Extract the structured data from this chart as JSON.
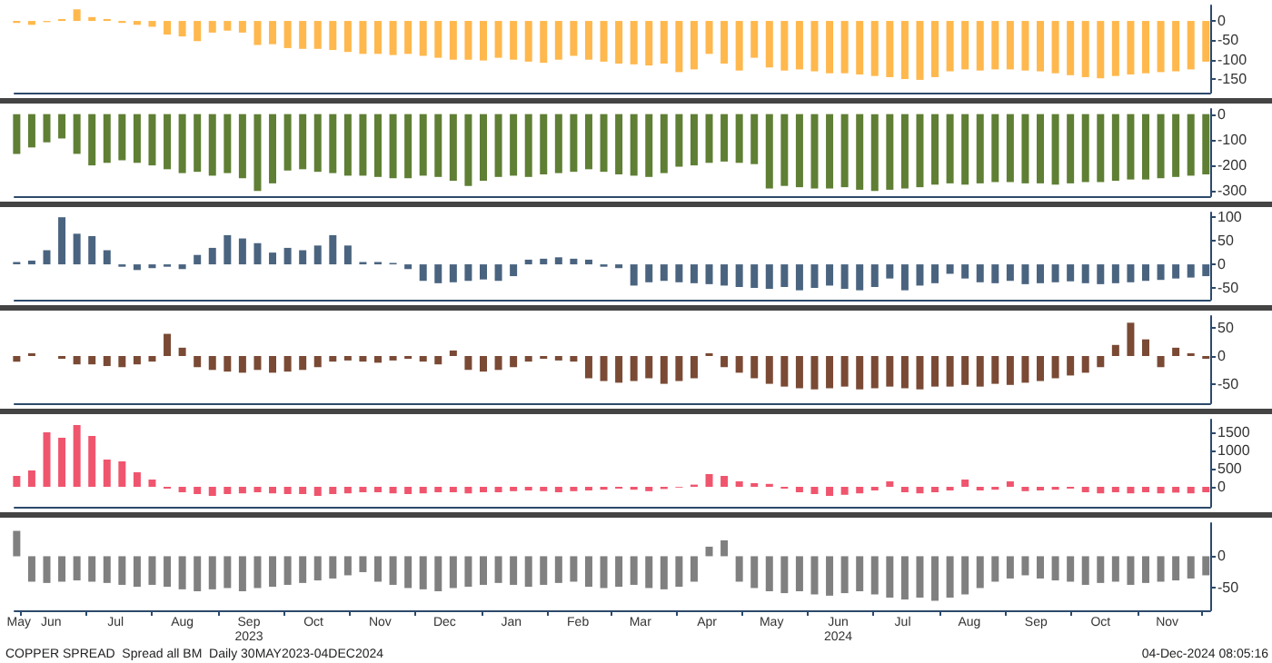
{
  "chart_data": [
    {
      "type": "bar",
      "color": "#ffb84d",
      "tick_labels": "y",
      "xlim": [
        "2023-05-29",
        "2024-12-05"
      ],
      "ylim": [
        -185,
        40
      ],
      "yticks": [
        -150,
        -100,
        -50,
        0
      ],
      "x": [
        "2023-05-30",
        "2023-06-06",
        "2023-06-13",
        "2023-06-20",
        "2023-06-27",
        "2023-07-04",
        "2023-07-11",
        "2023-07-18",
        "2023-07-25",
        "2023-08-01",
        "2023-08-08",
        "2023-08-15",
        "2023-08-22",
        "2023-08-29",
        "2023-09-05",
        "2023-09-12",
        "2023-09-19",
        "2023-09-26",
        "2023-10-03",
        "2023-10-10",
        "2023-10-17",
        "2023-10-24",
        "2023-10-31",
        "2023-11-07",
        "2023-11-14",
        "2023-11-21",
        "2023-11-28",
        "2023-12-05",
        "2023-12-12",
        "2023-12-19",
        "2023-12-26",
        "2024-01-02",
        "2024-01-09",
        "2024-01-16",
        "2024-01-23",
        "2024-01-30",
        "2024-02-06",
        "2024-02-13",
        "2024-02-20",
        "2024-02-27",
        "2024-03-05",
        "2024-03-12",
        "2024-03-19",
        "2024-03-26",
        "2024-04-02",
        "2024-04-09",
        "2024-04-16",
        "2024-04-23",
        "2024-04-30",
        "2024-05-07",
        "2024-05-14",
        "2024-05-21",
        "2024-05-28",
        "2024-06-04",
        "2024-06-11",
        "2024-06-18",
        "2024-06-25",
        "2024-07-02",
        "2024-07-09",
        "2024-07-16",
        "2024-07-23",
        "2024-07-30",
        "2024-08-06",
        "2024-08-13",
        "2024-08-20",
        "2024-08-27",
        "2024-09-03",
        "2024-09-10",
        "2024-09-17",
        "2024-09-24",
        "2024-10-01",
        "2024-10-08",
        "2024-10-15",
        "2024-10-22",
        "2024-10-29",
        "2024-11-05",
        "2024-11-12",
        "2024-11-19",
        "2024-11-26",
        "2024-12-03"
      ],
      "values": [
        -5,
        -10,
        -3,
        5,
        30,
        10,
        5,
        -5,
        -10,
        -15,
        -35,
        -40,
        -52,
        -30,
        -25,
        -30,
        -62,
        -60,
        -70,
        -72,
        -72,
        -75,
        -80,
        -85,
        -85,
        -88,
        -85,
        -90,
        -95,
        -100,
        -100,
        -102,
        -95,
        -100,
        -105,
        -108,
        -100,
        -90,
        -100,
        -105,
        -110,
        -112,
        -115,
        -110,
        -132,
        -125,
        -85,
        -110,
        -128,
        -95,
        -120,
        -128,
        -125,
        -130,
        -135,
        -135,
        -138,
        -142,
        -145,
        -150,
        -152,
        -145,
        -130,
        -125,
        -128,
        -125,
        -125,
        -128,
        -130,
        -135,
        -140,
        -145,
        -148,
        -142,
        -138,
        -135,
        -132,
        -130,
        -125,
        -105
      ]
    },
    {
      "type": "bar",
      "color": "#5f7f34",
      "tick_labels": "y",
      "xlim": [
        "2023-05-29",
        "2024-12-05"
      ],
      "ylim": [
        -320,
        20
      ],
      "yticks": [
        -300,
        -200,
        -100,
        0
      ],
      "x": [
        "2023-05-30",
        "2023-06-06",
        "2023-06-13",
        "2023-06-20",
        "2023-06-27",
        "2023-07-04",
        "2023-07-11",
        "2023-07-18",
        "2023-07-25",
        "2023-08-01",
        "2023-08-08",
        "2023-08-15",
        "2023-08-22",
        "2023-08-29",
        "2023-09-05",
        "2023-09-12",
        "2023-09-19",
        "2023-09-26",
        "2023-10-03",
        "2023-10-10",
        "2023-10-17",
        "2023-10-24",
        "2023-10-31",
        "2023-11-07",
        "2023-11-14",
        "2023-11-21",
        "2023-11-28",
        "2023-12-05",
        "2023-12-12",
        "2023-12-19",
        "2023-12-26",
        "2024-01-02",
        "2024-01-09",
        "2024-01-16",
        "2024-01-23",
        "2024-01-30",
        "2024-02-06",
        "2024-02-13",
        "2024-02-20",
        "2024-02-27",
        "2024-03-05",
        "2024-03-12",
        "2024-03-19",
        "2024-03-26",
        "2024-04-02",
        "2024-04-09",
        "2024-04-16",
        "2024-04-23",
        "2024-04-30",
        "2024-05-07",
        "2024-05-14",
        "2024-05-21",
        "2024-05-28",
        "2024-06-04",
        "2024-06-11",
        "2024-06-18",
        "2024-06-25",
        "2024-07-02",
        "2024-07-09",
        "2024-07-16",
        "2024-07-23",
        "2024-07-30",
        "2024-08-06",
        "2024-08-13",
        "2024-08-20",
        "2024-08-27",
        "2024-09-03",
        "2024-09-10",
        "2024-09-17",
        "2024-09-24",
        "2024-10-01",
        "2024-10-08",
        "2024-10-15",
        "2024-10-22",
        "2024-10-29",
        "2024-11-05",
        "2024-11-12",
        "2024-11-19",
        "2024-11-26",
        "2024-12-03"
      ],
      "values": [
        -155,
        -130,
        -110,
        -95,
        -155,
        -200,
        -190,
        -180,
        -190,
        -200,
        -215,
        -230,
        -225,
        -240,
        -230,
        -250,
        -300,
        -270,
        -220,
        -215,
        -225,
        -230,
        -240,
        -240,
        -245,
        -250,
        -250,
        -240,
        -245,
        -260,
        -280,
        -260,
        -245,
        -240,
        -245,
        -235,
        -230,
        -225,
        -215,
        -225,
        -235,
        -240,
        -245,
        -230,
        -205,
        -200,
        -190,
        -185,
        -190,
        -195,
        -290,
        -280,
        -285,
        -290,
        -290,
        -285,
        -295,
        -300,
        -295,
        -290,
        -285,
        -275,
        -270,
        -275,
        -270,
        -265,
        -265,
        -270,
        -270,
        -275,
        -270,
        -265,
        -265,
        -260,
        -255,
        -255,
        -250,
        -245,
        -240,
        -235
      ]
    },
    {
      "type": "bar",
      "color": "#4a6480",
      "tick_labels": "y",
      "xlim": [
        "2023-05-29",
        "2024-12-05"
      ],
      "ylim": [
        -75,
        110
      ],
      "yticks": [
        -50,
        0,
        50,
        100
      ],
      "x": [
        "2023-05-30",
        "2023-06-06",
        "2023-06-13",
        "2023-06-20",
        "2023-06-27",
        "2023-07-04",
        "2023-07-11",
        "2023-07-18",
        "2023-07-25",
        "2023-08-01",
        "2023-08-08",
        "2023-08-15",
        "2023-08-22",
        "2023-08-29",
        "2023-09-05",
        "2023-09-12",
        "2023-09-19",
        "2023-09-26",
        "2023-10-03",
        "2023-10-10",
        "2023-10-17",
        "2023-10-24",
        "2023-10-31",
        "2023-11-07",
        "2023-11-14",
        "2023-11-21",
        "2023-11-28",
        "2023-12-05",
        "2023-12-12",
        "2023-12-19",
        "2023-12-26",
        "2024-01-02",
        "2024-01-09",
        "2024-01-16",
        "2024-01-23",
        "2024-01-30",
        "2024-02-06",
        "2024-02-13",
        "2024-02-20",
        "2024-02-27",
        "2024-03-05",
        "2024-03-12",
        "2024-03-19",
        "2024-03-26",
        "2024-04-02",
        "2024-04-09",
        "2024-04-16",
        "2024-04-23",
        "2024-04-30",
        "2024-05-07",
        "2024-05-14",
        "2024-05-21",
        "2024-05-28",
        "2024-06-04",
        "2024-06-11",
        "2024-06-18",
        "2024-06-25",
        "2024-07-02",
        "2024-07-09",
        "2024-07-16",
        "2024-07-23",
        "2024-07-30",
        "2024-08-06",
        "2024-08-13",
        "2024-08-20",
        "2024-08-27",
        "2024-09-03",
        "2024-09-10",
        "2024-09-17",
        "2024-09-24",
        "2024-10-01",
        "2024-10-08",
        "2024-10-15",
        "2024-10-22",
        "2024-10-29",
        "2024-11-05",
        "2024-11-12",
        "2024-11-19",
        "2024-11-26",
        "2024-12-03"
      ],
      "values": [
        5,
        8,
        30,
        100,
        65,
        60,
        30,
        -5,
        -12,
        -8,
        -5,
        -10,
        20,
        35,
        62,
        55,
        45,
        25,
        35,
        30,
        40,
        62,
        40,
        5,
        5,
        3,
        -10,
        -35,
        -40,
        -38,
        -35,
        -32,
        -35,
        -25,
        10,
        12,
        15,
        12,
        10,
        -5,
        -8,
        -45,
        -38,
        -35,
        -38,
        -40,
        -42,
        -45,
        -48,
        -50,
        -52,
        -48,
        -55,
        -50,
        -45,
        -52,
        -55,
        -48,
        -30,
        -55,
        -45,
        -40,
        -20,
        -30,
        -38,
        -40,
        -35,
        -42,
        -40,
        -38,
        -36,
        -40,
        -42,
        -40,
        -38,
        -35,
        -33,
        -30,
        -28,
        -25
      ]
    },
    {
      "type": "bar",
      "color": "#7a4a35",
      "tick_labels": "y",
      "xlim": [
        "2023-05-29",
        "2024-12-05"
      ],
      "ylim": [
        -85,
        72
      ],
      "yticks": [
        -50,
        0,
        50
      ],
      "x": [
        "2023-05-30",
        "2023-06-06",
        "2023-06-13",
        "2023-06-20",
        "2023-06-27",
        "2023-07-04",
        "2023-07-11",
        "2023-07-18",
        "2023-07-25",
        "2023-08-01",
        "2023-08-08",
        "2023-08-15",
        "2023-08-22",
        "2023-08-29",
        "2023-09-05",
        "2023-09-12",
        "2023-09-19",
        "2023-09-26",
        "2023-10-03",
        "2023-10-10",
        "2023-10-17",
        "2023-10-24",
        "2023-10-31",
        "2023-11-07",
        "2023-11-14",
        "2023-11-21",
        "2023-11-28",
        "2023-12-05",
        "2023-12-12",
        "2023-12-19",
        "2023-12-26",
        "2024-01-02",
        "2024-01-09",
        "2024-01-16",
        "2024-01-23",
        "2024-01-30",
        "2024-02-06",
        "2024-02-13",
        "2024-02-20",
        "2024-02-27",
        "2024-03-05",
        "2024-03-12",
        "2024-03-19",
        "2024-03-26",
        "2024-04-02",
        "2024-04-09",
        "2024-04-16",
        "2024-04-23",
        "2024-04-30",
        "2024-05-07",
        "2024-05-14",
        "2024-05-21",
        "2024-05-28",
        "2024-06-04",
        "2024-06-11",
        "2024-06-18",
        "2024-06-25",
        "2024-07-02",
        "2024-07-09",
        "2024-07-16",
        "2024-07-23",
        "2024-07-30",
        "2024-08-06",
        "2024-08-13",
        "2024-08-20",
        "2024-08-27",
        "2024-09-03",
        "2024-09-10",
        "2024-09-17",
        "2024-09-24",
        "2024-10-01",
        "2024-10-08",
        "2024-10-15",
        "2024-10-22",
        "2024-10-29",
        "2024-11-05",
        "2024-11-12",
        "2024-11-19",
        "2024-11-26",
        "2024-12-03"
      ],
      "values": [
        -10,
        5,
        0,
        -5,
        -15,
        -15,
        -18,
        -20,
        -15,
        -10,
        40,
        15,
        -20,
        -25,
        -28,
        -30,
        -25,
        -30,
        -28,
        -25,
        -20,
        -10,
        -8,
        -10,
        -12,
        -8,
        -5,
        -10,
        -15,
        10,
        -25,
        -28,
        -25,
        -20,
        -10,
        -5,
        -8,
        -10,
        -40,
        -45,
        -48,
        -45,
        -40,
        -50,
        -45,
        -40,
        5,
        -20,
        -30,
        -40,
        -50,
        -55,
        -58,
        -60,
        -58,
        -55,
        -60,
        -58,
        -55,
        -58,
        -60,
        -55,
        -55,
        -52,
        -55,
        -50,
        -52,
        -48,
        -45,
        -40,
        -35,
        -30,
        -20,
        20,
        60,
        30,
        -20,
        15,
        5,
        -5
      ]
    },
    {
      "type": "bar",
      "color": "#f0556e",
      "tick_labels": "y",
      "xlim": [
        "2023-05-29",
        "2024-12-05"
      ],
      "ylim": [
        -550,
        1850
      ],
      "yticks": [
        0,
        500,
        1000,
        1500
      ],
      "x": [
        "2023-05-30",
        "2023-06-06",
        "2023-06-13",
        "2023-06-20",
        "2023-06-27",
        "2023-07-04",
        "2023-07-11",
        "2023-07-18",
        "2023-07-25",
        "2023-08-01",
        "2023-08-08",
        "2023-08-15",
        "2023-08-22",
        "2023-08-29",
        "2023-09-05",
        "2023-09-12",
        "2023-09-19",
        "2023-09-26",
        "2023-10-03",
        "2023-10-10",
        "2023-10-17",
        "2023-10-24",
        "2023-10-31",
        "2023-11-07",
        "2023-11-14",
        "2023-11-21",
        "2023-11-28",
        "2023-12-05",
        "2023-12-12",
        "2023-12-19",
        "2023-12-26",
        "2024-01-02",
        "2024-01-09",
        "2024-01-16",
        "2024-01-23",
        "2024-01-30",
        "2024-02-06",
        "2024-02-13",
        "2024-02-20",
        "2024-02-27",
        "2024-03-05",
        "2024-03-12",
        "2024-03-19",
        "2024-03-26",
        "2024-04-02",
        "2024-04-09",
        "2024-04-16",
        "2024-04-23",
        "2024-04-30",
        "2024-05-07",
        "2024-05-14",
        "2024-05-21",
        "2024-05-28",
        "2024-06-04",
        "2024-06-11",
        "2024-06-18",
        "2024-06-25",
        "2024-07-02",
        "2024-07-09",
        "2024-07-16",
        "2024-07-23",
        "2024-07-30",
        "2024-08-06",
        "2024-08-13",
        "2024-08-20",
        "2024-08-27",
        "2024-09-03",
        "2024-09-10",
        "2024-09-17",
        "2024-09-24",
        "2024-10-01",
        "2024-10-08",
        "2024-10-15",
        "2024-10-22",
        "2024-10-29",
        "2024-11-05",
        "2024-11-12",
        "2024-11-19",
        "2024-11-26",
        "2024-12-03"
      ],
      "values": [
        300,
        450,
        1500,
        1350,
        1700,
        1400,
        750,
        700,
        400,
        200,
        -50,
        -150,
        -200,
        -250,
        -200,
        -180,
        -150,
        -180,
        -200,
        -200,
        -250,
        -200,
        -180,
        -150,
        -150,
        -180,
        -200,
        -180,
        -150,
        -150,
        -180,
        -150,
        -150,
        -120,
        -100,
        -120,
        -150,
        -120,
        -100,
        -80,
        -50,
        -80,
        -120,
        -60,
        -20,
        60,
        350,
        300,
        150,
        100,
        80,
        -50,
        -150,
        -200,
        -250,
        -220,
        -180,
        -100,
        150,
        -150,
        -180,
        -150,
        -100,
        200,
        -100,
        -80,
        150,
        -120,
        -100,
        -80,
        -50,
        -150,
        -180,
        -150,
        -180,
        -150,
        -180,
        -160,
        -180,
        -150
      ]
    },
    {
      "type": "bar",
      "color": "#808080",
      "xlim": [
        "2023-05-29",
        "2024-12-05"
      ],
      "ylim": [
        -85,
        52
      ],
      "yticks": [
        -50,
        0
      ],
      "xticks": [
        {
          "value": "2023-06-01",
          "label": null
        },
        {
          "value": "2023-07-01",
          "label": null
        },
        {
          "value": "2023-08-01",
          "label": null
        },
        {
          "value": "2023-09-01",
          "label": null
        },
        {
          "value": "2023-10-01",
          "label": null
        },
        {
          "value": "2023-11-01",
          "label": null
        },
        {
          "value": "2023-12-01",
          "label": null
        },
        {
          "value": "2024-01-01",
          "label": null
        },
        {
          "value": "2024-02-01",
          "label": null
        },
        {
          "value": "2024-03-01",
          "label": null
        },
        {
          "value": "2024-04-01",
          "label": null
        },
        {
          "value": "2024-05-01",
          "label": null
        },
        {
          "value": "2024-06-01",
          "label": null
        },
        {
          "value": "2024-07-01",
          "label": null
        },
        {
          "value": "2024-08-01",
          "label": null
        },
        {
          "value": "2024-09-01",
          "label": null
        },
        {
          "value": "2024-10-01",
          "label": null
        },
        {
          "value": "2024-11-01",
          "label": null
        },
        {
          "value": "2024-12-01",
          "label": null
        },
        {
          "value": "2023-05-31",
          "label": "May"
        },
        {
          "value": "2023-06-15",
          "label": "Jun"
        },
        {
          "value": "2023-07-15",
          "label": "Jul"
        },
        {
          "value": "2023-08-15",
          "label": "Aug"
        },
        {
          "value": "2023-09-15",
          "label": "Sep\n2023"
        },
        {
          "value": "2023-10-15",
          "label": "Oct"
        },
        {
          "value": "2023-11-15",
          "label": "Nov"
        },
        {
          "value": "2023-12-15",
          "label": "Dec"
        },
        {
          "value": "2024-01-15",
          "label": "Jan"
        },
        {
          "value": "2024-02-15",
          "label": "Feb"
        },
        {
          "value": "2024-03-15",
          "label": "Mar"
        },
        {
          "value": "2024-04-15",
          "label": "Apr"
        },
        {
          "value": "2024-05-15",
          "label": "May"
        },
        {
          "value": "2024-06-15",
          "label": "Jun\n2024"
        },
        {
          "value": "2024-07-15",
          "label": "Jul"
        },
        {
          "value": "2024-08-15",
          "label": "Aug"
        },
        {
          "value": "2024-09-15",
          "label": "Sep"
        },
        {
          "value": "2024-10-15",
          "label": "Oct"
        },
        {
          "value": "2024-11-15",
          "label": "Nov"
        }
      ],
      "x": [
        "2023-05-30",
        "2023-06-06",
        "2023-06-13",
        "2023-06-20",
        "2023-06-27",
        "2023-07-04",
        "2023-07-11",
        "2023-07-18",
        "2023-07-25",
        "2023-08-01",
        "2023-08-08",
        "2023-08-15",
        "2023-08-22",
        "2023-08-29",
        "2023-09-05",
        "2023-09-12",
        "2023-09-19",
        "2023-09-26",
        "2023-10-03",
        "2023-10-10",
        "2023-10-17",
        "2023-10-24",
        "2023-10-31",
        "2023-11-07",
        "2023-11-14",
        "2023-11-21",
        "2023-11-28",
        "2023-12-05",
        "2023-12-12",
        "2023-12-19",
        "2023-12-26",
        "2024-01-02",
        "2024-01-09",
        "2024-01-16",
        "2024-01-23",
        "2024-01-30",
        "2024-02-06",
        "2024-02-13",
        "2024-02-20",
        "2024-02-27",
        "2024-03-05",
        "2024-03-12",
        "2024-03-19",
        "2024-03-26",
        "2024-04-02",
        "2024-04-09",
        "2024-04-16",
        "2024-04-23",
        "2024-04-30",
        "2024-05-07",
        "2024-05-14",
        "2024-05-21",
        "2024-05-28",
        "2024-06-04",
        "2024-06-11",
        "2024-06-18",
        "2024-06-25",
        "2024-07-02",
        "2024-07-09",
        "2024-07-16",
        "2024-07-23",
        "2024-07-30",
        "2024-08-06",
        "2024-08-13",
        "2024-08-20",
        "2024-08-27",
        "2024-09-03",
        "2024-09-10",
        "2024-09-17",
        "2024-09-24",
        "2024-10-01",
        "2024-10-08",
        "2024-10-15",
        "2024-10-22",
        "2024-10-29",
        "2024-11-05",
        "2024-11-12",
        "2024-11-19",
        "2024-11-26",
        "2024-12-03"
      ],
      "values": [
        40,
        -40,
        -42,
        -40,
        -38,
        -40,
        -42,
        -45,
        -48,
        -45,
        -48,
        -52,
        -55,
        -52,
        -50,
        -55,
        -50,
        -48,
        -45,
        -42,
        -38,
        -35,
        -30,
        -25,
        -40,
        -45,
        -50,
        -52,
        -55,
        -50,
        -48,
        -45,
        -42,
        -45,
        -48,
        -45,
        -42,
        -40,
        -48,
        -50,
        -48,
        -45,
        -50,
        -52,
        -48,
        -40,
        15,
        25,
        -40,
        -50,
        -55,
        -58,
        -55,
        -60,
        -62,
        -58,
        -55,
        -60,
        -65,
        -68,
        -65,
        -70,
        -65,
        -60,
        -50,
        -40,
        -35,
        -30,
        -35,
        -38,
        -40,
        -45,
        -42,
        -40,
        -45,
        -42,
        -40,
        -38,
        -35,
        -30
      ],
      "annotations": [
        "COPPER SPREAD  Spread all BM  Daily 30MAY2023-04DEC2024",
        "04-Dec-2024 08:05:16"
      ]
    }
  ]
}
